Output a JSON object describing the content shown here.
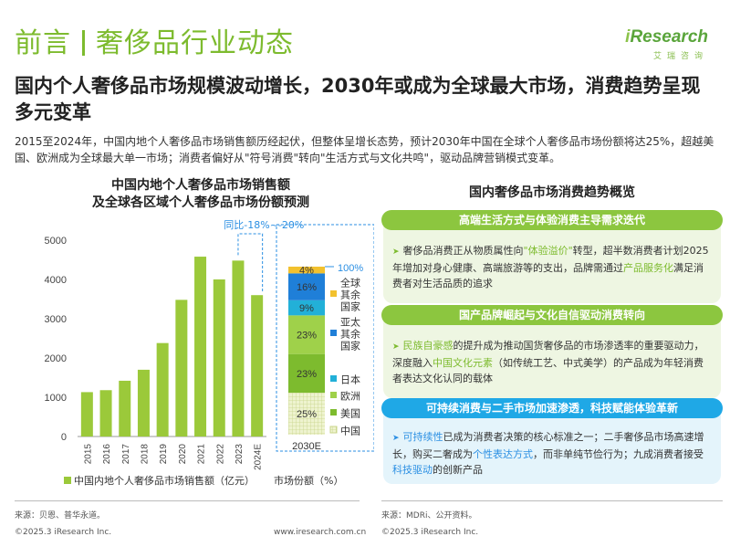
{
  "header": {
    "section": "前言",
    "topic": "奢侈品行业动态",
    "logo_text": "Research",
    "logo_prefix": "i",
    "logo_sub": "艾瑞咨询"
  },
  "headline": "国内个人奢侈品市场规模波动增长，2030年或成为全球最大市场，消费趋势呈现多元变革",
  "summary": "2015至2024年，中国内地个人奢侈品市场销售额历经起伏，但整体呈增长态势，预计2030年中国在全球个人奢侈品市场份额将达25%，超越美国、欧洲成为全球最大单一市场；消费者偏好从\"符号消费\"转向\"生活方式与文化共鸣\"，驱动品牌营销模式变革。",
  "left": {
    "chart_title_1": "中国内地个人奢侈品市场销售额",
    "chart_title_2": "及全球各区域个人奢侈品市场份额预测",
    "legend_sales": "中国内地个人奢侈品市场销售额（亿元）",
    "legend_share": "市场份额（%）",
    "source": "来源：贝恩、普华永道。",
    "copyright": "©2025.3 iResearch Inc.",
    "website": "www.iresearch.com.cn"
  },
  "chart_data": [
    {
      "type": "bar",
      "categories": [
        "2015",
        "2016",
        "2017",
        "2018",
        "2019",
        "2020",
        "2021",
        "2022",
        "2023",
        "2024E"
      ],
      "values": [
        1130,
        1180,
        1420,
        1700,
        2380,
        3480,
        4580,
        4000,
        4480,
        3600
      ],
      "ylim": [
        0,
        5000
      ],
      "yticks": [
        0,
        1000,
        2000,
        3000,
        4000,
        5000
      ],
      "annotation": "同比-18%~-20%",
      "color": "#9bc93a",
      "legend": "中国内地个人奢侈品市场销售额（亿元）"
    },
    {
      "type": "stacked_bar",
      "category": "2030E",
      "series": [
        {
          "name": "中国",
          "value": 25,
          "color": "#e9efc9",
          "pattern": "grid"
        },
        {
          "name": "美国",
          "value": 23,
          "color": "#7dbb2e"
        },
        {
          "name": "欧洲",
          "value": 23,
          "color": "#9fd14a"
        },
        {
          "name": "日本",
          "value": 9,
          "color": "#22b0d8"
        },
        {
          "name": "亚太其余国家",
          "value": 16,
          "color": "#1f7fd8"
        },
        {
          "name": "全球其余国家",
          "value": 4,
          "color": "#f2c12e"
        }
      ],
      "total_label": "100%",
      "legend": "市场份额（%）"
    }
  ],
  "right": {
    "title": "国内奢侈品市场消费趋势概览",
    "trend1": {
      "head": "高端生活方式与体验消费主导需求迭代",
      "p1": "奢侈品消费正从物质属性向",
      "h1": "\"体验溢价\"",
      "p2": "转型，超半数消费者计划2025年增加对身心健康、高端旅游等的支出，品牌需通过",
      "h2": "产品服务化",
      "p3": "满足消费者对生活品质的追求"
    },
    "trend2": {
      "head": "国产品牌崛起与文化自信驱动消费转向",
      "h1": "民族自豪感",
      "p1": "的提升成为推动国货奢侈品的市场渗透率的重要驱动力，深度融入",
      "h2": "中国文化元素",
      "p2": "（如传统工艺、中式美学）的产品成为年轻消费者表达文化认同的载体"
    },
    "trend3": {
      "head": "可持续消费与二手市场加速渗透，科技赋能体验革新",
      "h1": "可持续性",
      "p1": "已成为消费者决策的核心标准之一；二手奢侈品市场高速增长，购买二奢成为",
      "h2": "个性表达方式",
      "p2": "，而非单纯节俭行为；九成消费者接受",
      "h3": "科技驱动",
      "p3": "的创新产品"
    },
    "source": "来源：MDRi、公开资料。",
    "copyright": "©2025.3 iResearch Inc."
  },
  "colors": {
    "brand_green": "#7dbb2e",
    "bar_green": "#9bc93a",
    "pill_green": "#8cc63f",
    "pill_blue": "#1fa8e6",
    "panel_green": "#eef6e2",
    "panel_blue": "#e4f4fb",
    "accent_blue": "#2b8fe3"
  }
}
